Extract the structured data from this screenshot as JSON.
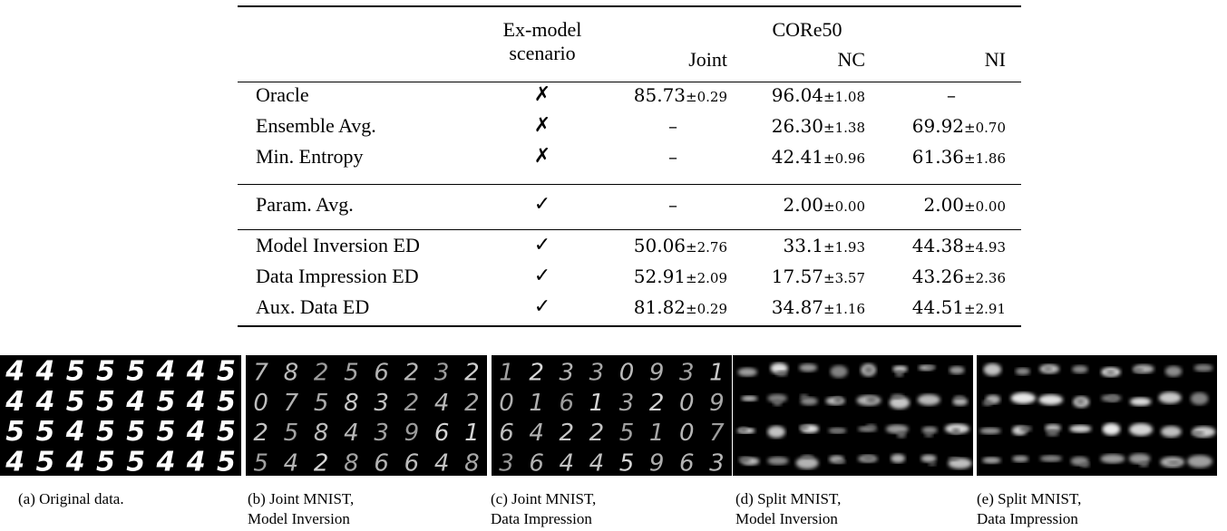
{
  "table": {
    "header": {
      "scenario_line1": "Ex-model",
      "scenario_line2": "scenario",
      "dataset": "CORe50",
      "col_joint": "Joint",
      "col_nc": "NC",
      "col_ni": "NI"
    },
    "marks": {
      "no": "✗",
      "yes": "✓"
    },
    "rows": [
      {
        "method": "Oracle",
        "exmodel": "no",
        "joint": "85.73",
        "joint_std": "±0.29",
        "nc": "96.04",
        "nc_std": "±1.08",
        "ni": "–",
        "ni_std": ""
      },
      {
        "method": "Ensemble Avg.",
        "exmodel": "no",
        "joint": "–",
        "joint_std": "",
        "nc": "26.30",
        "nc_std": "±1.38",
        "ni": "69.92",
        "ni_std": "±0.70"
      },
      {
        "method": "Min. Entropy",
        "exmodel": "no",
        "joint": "–",
        "joint_std": "",
        "nc": "42.41",
        "nc_std": "±0.96",
        "ni": "61.36",
        "ni_std": "±1.86"
      },
      {
        "method": "Param. Avg.",
        "exmodel": "yes",
        "joint": "–",
        "joint_std": "",
        "nc": "2.00",
        "nc_std": "±0.00",
        "ni": "2.00",
        "ni_std": "±0.00"
      },
      {
        "method": "Model Inversion ED",
        "exmodel": "yes",
        "joint": "50.06",
        "joint_std": "±2.76",
        "nc": "33.1",
        "nc_std": "±1.93",
        "ni": "44.38",
        "ni_std": "±4.93"
      },
      {
        "method": "Data Impression ED",
        "exmodel": "yes",
        "joint": "52.91",
        "joint_std": "±2.09",
        "nc": "17.57",
        "nc_std": "±3.57",
        "ni": "43.26",
        "ni_std": "±2.36"
      },
      {
        "method": "Aux. Data ED",
        "exmodel": "yes",
        "joint": "81.82",
        "joint_std": "±0.29",
        "nc": "34.87",
        "nc_std": "±1.16",
        "ni": "44.51",
        "ni_std": "±2.91"
      }
    ]
  },
  "figures": [
    {
      "caption_line1": "(a) Original data.",
      "caption_line2": "",
      "kind": "digits",
      "digits": [
        [
          "4",
          "4",
          "5",
          "5",
          "5",
          "4",
          "4",
          "5"
        ],
        [
          "4",
          "4",
          "5",
          "5",
          "4",
          "5",
          "4",
          "5"
        ],
        [
          "5",
          "5",
          "4",
          "5",
          "5",
          "5",
          "4",
          "5"
        ],
        [
          "4",
          "5",
          "4",
          "5",
          "5",
          "4",
          "4",
          "5"
        ]
      ]
    },
    {
      "caption_line1": "(b) Joint MNIST,",
      "caption_line2": "Model Inversion",
      "kind": "digits",
      "digits": [
        [
          "7",
          "8",
          "2",
          "5",
          "6",
          "2",
          "3",
          "2"
        ],
        [
          "0",
          "7",
          "5",
          "8",
          "3",
          "2",
          "4",
          "2"
        ],
        [
          "2",
          "5",
          "8",
          "4",
          "3",
          "9",
          "6",
          "1"
        ],
        [
          "5",
          "4",
          "2",
          "8",
          "6",
          "6",
          "4",
          "8"
        ]
      ]
    },
    {
      "caption_line1": "(c) Joint MNIST,",
      "caption_line2": "Data Impression",
      "kind": "digits",
      "digits": [
        [
          "1",
          "2",
          "3",
          "3",
          "0",
          "9",
          "3",
          "1"
        ],
        [
          "0",
          "1",
          "6",
          "1",
          "3",
          "2",
          "0",
          "9"
        ],
        [
          "6",
          "4",
          "2",
          "2",
          "5",
          "1",
          "0",
          "7"
        ],
        [
          "3",
          "6",
          "4",
          "4",
          "5",
          "9",
          "6",
          "3"
        ]
      ]
    },
    {
      "caption_line1": "(d) Split MNIST,",
      "caption_line2": "Model Inversion",
      "kind": "blobs"
    },
    {
      "caption_line1": "(e) Split MNIST,",
      "caption_line2": "Data Impression",
      "kind": "blobs"
    }
  ]
}
